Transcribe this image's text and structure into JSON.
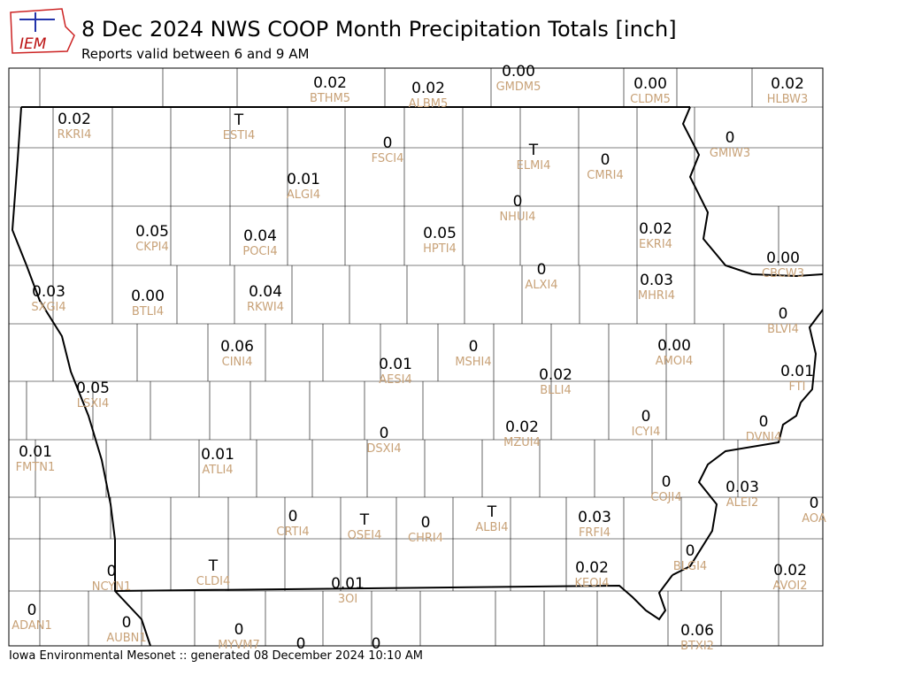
{
  "header": {
    "title": "8 Dec 2024 NWS COOP Month Precipitation Totals [inch]",
    "subtitle": "Reports valid between 6 and 9 AM",
    "logo": "IEM"
  },
  "footer": "Iowa Environmental Mesonet :: generated 08 December 2024 10:10 AM",
  "stations": [
    {
      "value": "0.02",
      "id": "BTHM5"
    },
    {
      "value": "0.02",
      "id": "ALBM5"
    },
    {
      "value": "0.00",
      "id": "GMDM5"
    },
    {
      "value": "0.00",
      "id": "CLDM5"
    },
    {
      "value": "0.02",
      "id": "HLBW3"
    },
    {
      "value": "0.02",
      "id": "RKRI4"
    },
    {
      "value": "T",
      "id": "ESTI4"
    },
    {
      "value": "0",
      "id": "FSCI4"
    },
    {
      "value": "T",
      "id": "ELMI4"
    },
    {
      "value": "0",
      "id": "CMRI4"
    },
    {
      "value": "0",
      "id": "GMIW3"
    },
    {
      "value": "0.01",
      "id": "ALGI4"
    },
    {
      "value": "0",
      "id": "NHUI4"
    },
    {
      "value": "0.05",
      "id": "CKPI4"
    },
    {
      "value": "0.04",
      "id": "POCI4"
    },
    {
      "value": "0.05",
      "id": "HPTI4"
    },
    {
      "value": "0.02",
      "id": "EKRI4"
    },
    {
      "value": "0.00",
      "id": "CBCW3"
    },
    {
      "value": "0",
      "id": "ALXI4"
    },
    {
      "value": "0.03",
      "id": "MHRI4"
    },
    {
      "value": "0.03",
      "id": "SXGI4"
    },
    {
      "value": "0.00",
      "id": "BTLI4"
    },
    {
      "value": "0.04",
      "id": "RKWI4"
    },
    {
      "value": "0",
      "id": "BLVI4"
    },
    {
      "value": "0.06",
      "id": "CINI4"
    },
    {
      "value": "0",
      "id": "MSHI4"
    },
    {
      "value": "0.00",
      "id": "AMOI4"
    },
    {
      "value": "0.01",
      "id": "AESI4"
    },
    {
      "value": "0.02",
      "id": "BLLI4"
    },
    {
      "value": "0.01",
      "id": "FTI"
    },
    {
      "value": "0.05",
      "id": "LSXI4"
    },
    {
      "value": "0",
      "id": "ICYI4"
    },
    {
      "value": "0",
      "id": "DVNI4"
    },
    {
      "value": "0",
      "id": "DSXI4"
    },
    {
      "value": "0.02",
      "id": "MZUI4"
    },
    {
      "value": "0.01",
      "id": "FMTN1"
    },
    {
      "value": "0.01",
      "id": "ATLI4"
    },
    {
      "value": "0",
      "id": "COJI4"
    },
    {
      "value": "0.03",
      "id": "ALEI2"
    },
    {
      "value": "0",
      "id": "AOA"
    },
    {
      "value": "0",
      "id": "CRTI4"
    },
    {
      "value": "T",
      "id": "OSEI4"
    },
    {
      "value": "0",
      "id": "CHRI4"
    },
    {
      "value": "T",
      "id": "ALBI4"
    },
    {
      "value": "0.03",
      "id": "FRFI4"
    },
    {
      "value": "0",
      "id": "BLGI4"
    },
    {
      "value": "0",
      "id": "NCYN1"
    },
    {
      "value": "T",
      "id": "CLDI4"
    },
    {
      "value": "0.02",
      "id": "KEOI4"
    },
    {
      "value": "0.02",
      "id": "AVOI2"
    },
    {
      "value": "0.01",
      "id": "3OI"
    },
    {
      "value": "0",
      "id": "ADAN1"
    },
    {
      "value": "0",
      "id": "AUBN1"
    },
    {
      "value": "0",
      "id": "MYVM7"
    },
    {
      "value": "0.06",
      "id": "BTXI2"
    },
    {
      "value": "0"
    },
    {
      "value": "0"
    }
  ]
}
